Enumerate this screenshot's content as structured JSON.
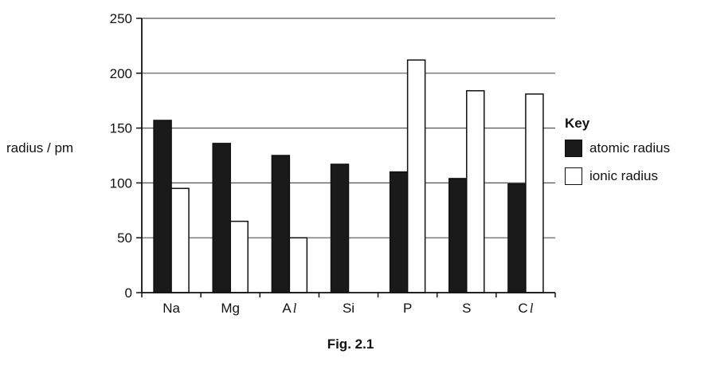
{
  "chart_data": {
    "type": "bar",
    "categories": [
      {
        "main": "Na",
        "italic": ""
      },
      {
        "main": "Mg",
        "italic": ""
      },
      {
        "main": "A",
        "italic": "l"
      },
      {
        "main": "Si",
        "italic": ""
      },
      {
        "main": "P",
        "italic": ""
      },
      {
        "main": "S",
        "italic": ""
      },
      {
        "main": "C",
        "italic": "l"
      }
    ],
    "series": [
      {
        "name": "atomic radius",
        "color": "#1a1a1a",
        "values": [
          157,
          136,
          125,
          117,
          110,
          104,
          99
        ]
      },
      {
        "name": "ionic radius",
        "color": "#ffffff",
        "values": [
          95,
          65,
          50,
          null,
          212,
          184,
          181
        ]
      }
    ],
    "ylabel": "radius / pm",
    "ylim": [
      0,
      250
    ],
    "yticks": [
      0,
      50,
      100,
      150,
      200,
      250
    ],
    "grid": true,
    "legend": {
      "title": "Key",
      "placement": "right"
    }
  },
  "caption": "Fig. 2.1"
}
